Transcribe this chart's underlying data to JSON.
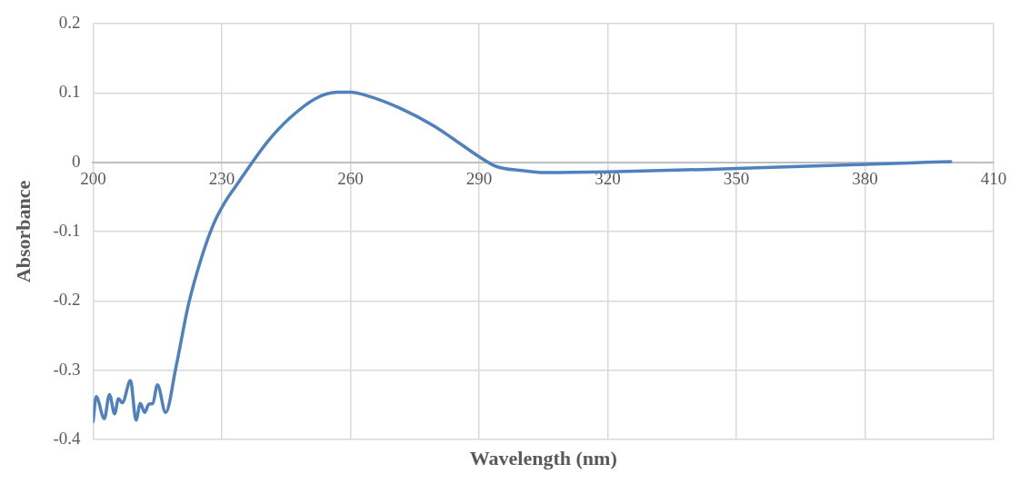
{
  "chart_data": {
    "type": "line",
    "xlabel": "Wavelength (nm)",
    "ylabel": "Absorbance",
    "xlim": [
      200,
      410
    ],
    "xticks": [
      200,
      230,
      260,
      290,
      320,
      350,
      380,
      410
    ],
    "ylim": [
      -0.4,
      0.2
    ],
    "yticks": [
      -0.4,
      -0.3,
      -0.2,
      -0.1,
      0,
      0.1,
      0.2
    ],
    "grid": true,
    "legend": false,
    "marker": "none",
    "line_style": "solid",
    "series": [
      {
        "color": "#4f81bd",
        "x": [
          200,
          200.7,
          202.6,
          203.8,
          205,
          205.9,
          206.8,
          208.7,
          210,
          211,
          212,
          213,
          213.9,
          215,
          216.9,
          219.3,
          222.2,
          225.2,
          228.1,
          230.7,
          234,
          237,
          240.7,
          245.9,
          251.9,
          257,
          260,
          264.4,
          271.9,
          279.3,
          283.7,
          290,
          294,
          300,
          305,
          320,
          350,
          380,
          400
        ],
        "values": [
          -0.374,
          -0.338,
          -0.37,
          -0.335,
          -0.363,
          -0.341,
          -0.347,
          -0.315,
          -0.372,
          -0.348,
          -0.361,
          -0.349,
          -0.348,
          -0.321,
          -0.361,
          -0.296,
          -0.206,
          -0.139,
          -0.089,
          -0.058,
          -0.028,
          -0.001,
          0.03,
          0.064,
          0.092,
          0.101,
          0.101,
          0.095,
          0.077,
          0.053,
          0.035,
          0.008,
          -0.006,
          -0.012,
          -0.015,
          -0.014,
          -0.009,
          -0.003,
          0.001
        ]
      }
    ]
  }
}
